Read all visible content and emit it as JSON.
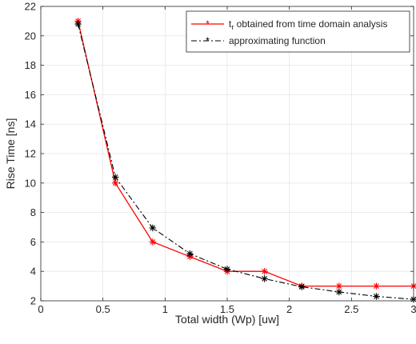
{
  "chart_data": {
    "type": "line",
    "title": "",
    "xlabel": "Total width (Wp) [uw]",
    "ylabel": "Rise Time [ns]",
    "xlim": [
      0,
      3
    ],
    "ylim": [
      2,
      22
    ],
    "xticks": [
      0,
      0.5,
      1,
      1.5,
      2,
      2.5,
      3
    ],
    "xtick_labels": [
      "0",
      "0.5",
      "1",
      "1.5",
      "2",
      "2.5",
      "3"
    ],
    "yticks": [
      2,
      4,
      6,
      8,
      10,
      12,
      14,
      16,
      18,
      20,
      22
    ],
    "ytick_labels": [
      "2",
      "4",
      "6",
      "8",
      "10",
      "12",
      "14",
      "16",
      "18",
      "20",
      "22"
    ],
    "grid": true,
    "legend_position": "top-right",
    "series": [
      {
        "legend_main": "t",
        "legend_sub": "r",
        "legend_rest": " obtained from time domain analysis",
        "color": "#ff0000",
        "line_style": "solid",
        "marker": "asterisk",
        "x": [
          0.3,
          0.6,
          0.9,
          1.2,
          1.5,
          1.8,
          2.1,
          2.4,
          2.7,
          3.0
        ],
        "y": [
          21.0,
          10.0,
          6.0,
          5.0,
          4.0,
          4.0,
          3.0,
          3.0,
          3.0,
          3.0
        ]
      },
      {
        "legend_main": "approximating function",
        "legend_sub": "",
        "legend_rest": "",
        "color": "#000000",
        "line_style": "dashdot",
        "marker": "asterisk",
        "x": [
          0.3,
          0.6,
          0.9,
          1.2,
          1.5,
          1.8,
          2.1,
          2.4,
          2.7,
          3.0
        ],
        "y": [
          20.8,
          10.4,
          6.95,
          5.2,
          4.15,
          3.5,
          2.95,
          2.6,
          2.3,
          2.1
        ]
      }
    ]
  }
}
